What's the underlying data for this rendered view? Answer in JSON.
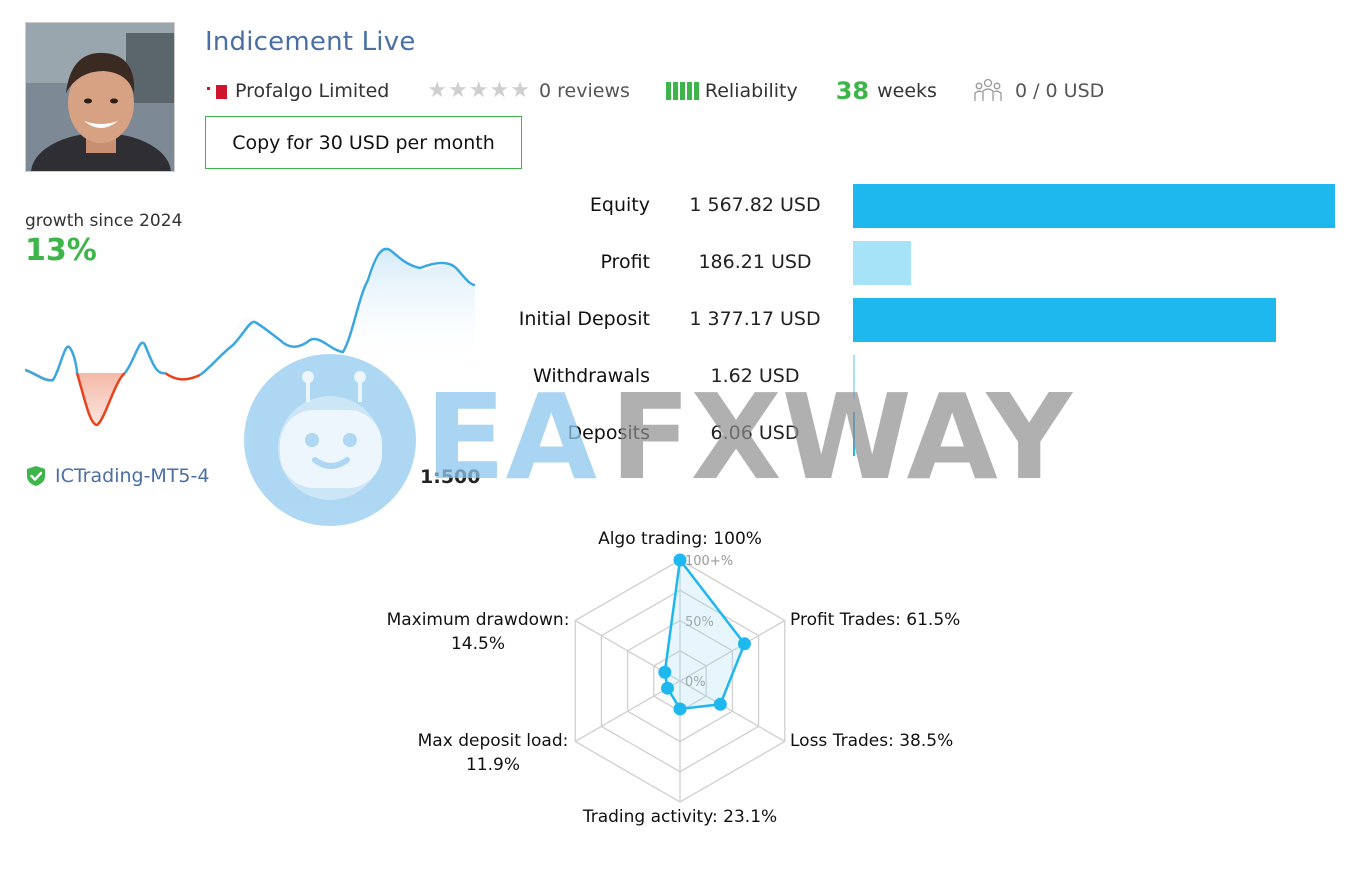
{
  "signal": {
    "title": "Indicement Live",
    "provider": "Profalgo Limited",
    "reviews": "0 reviews",
    "reliability_label": "Reliability",
    "weeks_value": "38",
    "weeks_label": "weeks",
    "subscribers": "0 / 0 USD",
    "rating_stars": 0,
    "reliability_bars": 5
  },
  "copy_button": {
    "label": "Copy for 30 USD per month"
  },
  "growth": {
    "label": "growth since 2024",
    "value": "13%"
  },
  "account": {
    "broker": "ICTrading-MT5-4",
    "leverage": "1:500"
  },
  "stats": [
    {
      "label": "Equity",
      "value": "1 567.82 USD",
      "fraction": 1.0,
      "color": "#1eb7ee"
    },
    {
      "label": "Profit",
      "value": "186.21 USD",
      "fraction": 0.12,
      "color": "#a6e2f8"
    },
    {
      "label": "Initial Deposit",
      "value": "1 377.17 USD",
      "fraction": 0.878,
      "color": "#1eb7ee"
    },
    {
      "label": "Withdrawals",
      "value": "1.62 USD",
      "fraction": 0.001,
      "color": "#a6e2f8"
    },
    {
      "label": "Deposits",
      "value": "6.06 USD",
      "fraction": 0.004,
      "color": "#1eb7ee"
    }
  ],
  "radar": {
    "ticks": [
      "100+%",
      "50%",
      "0%"
    ],
    "axes": [
      {
        "label": "Algo trading: 100%",
        "value": 100
      },
      {
        "label": "Profit Trades: 61.5%",
        "value": 61.5
      },
      {
        "label": "Loss Trades: 38.5%",
        "value": 38.5
      },
      {
        "label": "Trading activity: 23.1%",
        "value": 23.1
      },
      {
        "label_line1": "Max deposit load:",
        "label_line2": "11.9%",
        "value": 11.9
      },
      {
        "label_line1": "Maximum drawdown:",
        "label_line2": "14.5%",
        "value": 14.5
      }
    ]
  },
  "watermark": {
    "text_a": "EA",
    "text_b": "FXWAY"
  },
  "colors": {
    "accent_green": "#3db54a",
    "title_blue": "#4a6fa5",
    "bar_blue": "#1eb7ee",
    "bar_light": "#a6e2f8",
    "loss_red": "#e8411c"
  }
}
